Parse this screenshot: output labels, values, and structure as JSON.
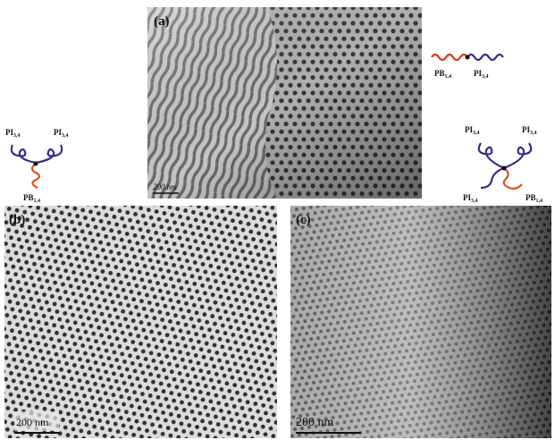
{
  "panels": [
    {
      "label": "(a)",
      "scale_bar": "200 nm"
    },
    {
      "label": "(b)",
      "scale_bar": "200 nm"
    },
    {
      "label": "(c)",
      "scale_bar": "200 nm"
    }
  ],
  "schematics": {
    "linear": {
      "arms": [
        {
          "name": "PB",
          "sub": "1,4"
        },
        {
          "name": "PI",
          "sub": "3,4"
        }
      ]
    },
    "three_arm": {
      "arms": [
        {
          "name": "PI",
          "sub": "3,4"
        },
        {
          "name": "PI",
          "sub": "3,4"
        },
        {
          "name": "PB",
          "sub": "1,4"
        }
      ]
    },
    "four_arm": {
      "arms": [
        {
          "name": "PI",
          "sub": "3,4"
        },
        {
          "name": "PI",
          "sub": "3,4"
        },
        {
          "name": "PI",
          "sub": "3,4"
        },
        {
          "name": "PB",
          "sub": "1,4"
        }
      ]
    }
  }
}
